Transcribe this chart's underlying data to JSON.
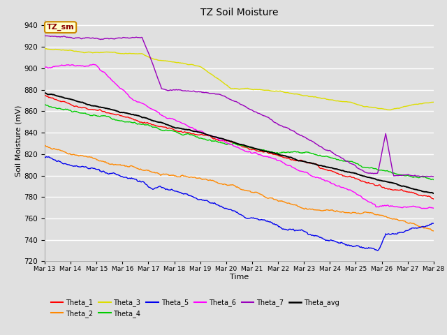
{
  "title": "TZ Soil Moisture",
  "xlabel": "Time",
  "ylabel": "Soil Moisture (mV)",
  "ylim": [
    720,
    945
  ],
  "yticks": [
    720,
    740,
    760,
    780,
    800,
    820,
    840,
    860,
    880,
    900,
    920,
    940
  ],
  "bg_color": "#e0e0e0",
  "grid_color": "#ffffff",
  "series_colors": {
    "Theta_1": "#ff0000",
    "Theta_2": "#ff8800",
    "Theta_3": "#dddd00",
    "Theta_4": "#00cc00",
    "Theta_5": "#0000ee",
    "Theta_6": "#ff00ff",
    "Theta_7": "#9900bb",
    "Theta_avg": "#000000"
  },
  "date_labels": [
    "Mar 13",
    "Mar 14",
    "Mar 15",
    "Mar 16",
    "Mar 17",
    "Mar 18",
    "Mar 19",
    "Mar 20",
    "Mar 21",
    "Mar 22",
    "Mar 23",
    "Mar 24",
    "Mar 25",
    "Mar 26",
    "Mar 27",
    "Mar 28"
  ],
  "label_box_text": "TZ_sm",
  "label_box_facecolor": "#ffffcc",
  "label_box_edgecolor": "#cc8800",
  "label_text_color": "#8B0000",
  "n_points": 480
}
